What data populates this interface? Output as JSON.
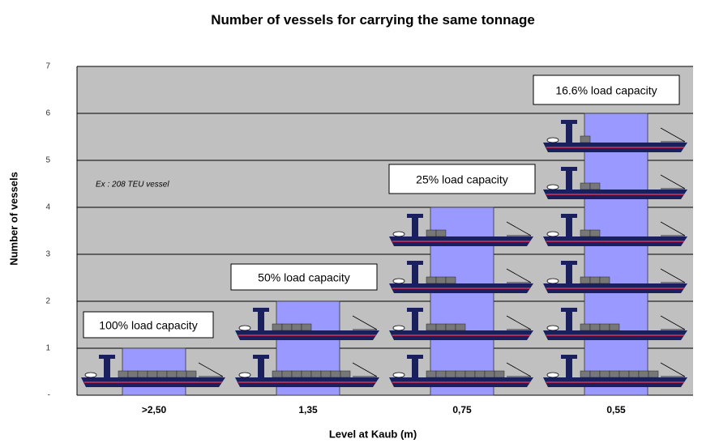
{
  "chart_data": {
    "type": "bar",
    "title": "Number of vessels for carrying the same tonnage",
    "x_label": "Level at Kaub (m)",
    "y_label": "Number of vessels",
    "categories": [
      ">2,50",
      "1,35",
      "0,75",
      "0,55"
    ],
    "values": [
      1,
      2,
      4,
      6
    ],
    "color": "#9999ff",
    "ylim": [
      0,
      7
    ],
    "yticks": [
      {
        "value": 0,
        "label": "-"
      },
      1,
      2,
      3,
      4,
      5,
      6,
      7
    ],
    "grid": true,
    "annotations": [
      "100% load capacity",
      "50% load capacity",
      "25% load capacity",
      "16.6% load capacity",
      "Ex : 208 TEU vessel"
    ]
  }
}
